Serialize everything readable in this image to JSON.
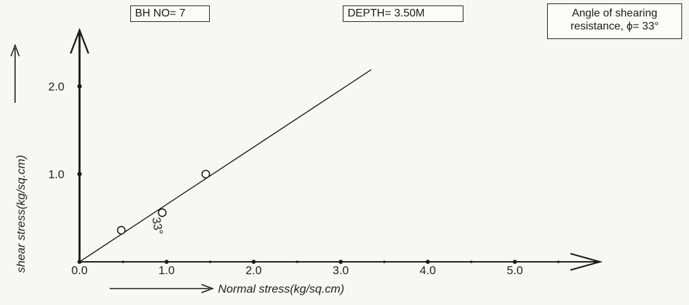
{
  "labels": {
    "borehole": "BH NO= 7",
    "depth": "DEPTH= 3.50M",
    "phi_line1": "Angle of shearing",
    "phi_line2": "resistance, ϕ= 33°",
    "angle_mark": "33°"
  },
  "chart_data": {
    "type": "scatter",
    "xlabel": "Normal stress(kg/sq.cm)",
    "ylabel": "shear stress(kg/sq.cm)",
    "xlim": [
      0,
      5.5
    ],
    "ylim": [
      0,
      2.5
    ],
    "x_ticks": [
      "0.0",
      "1.0",
      "2.0",
      "3.0",
      "4.0",
      "5.0"
    ],
    "y_ticks": [
      "1.0",
      "2.0"
    ],
    "points": [
      {
        "x": 0.48,
        "y": 0.36
      },
      {
        "x": 0.95,
        "y": 0.56
      },
      {
        "x": 1.45,
        "y": 1.0
      }
    ],
    "fit_line": {
      "x": [
        0,
        3.35
      ],
      "y": [
        0,
        2.19
      ]
    },
    "friction_angle_deg": 33
  }
}
